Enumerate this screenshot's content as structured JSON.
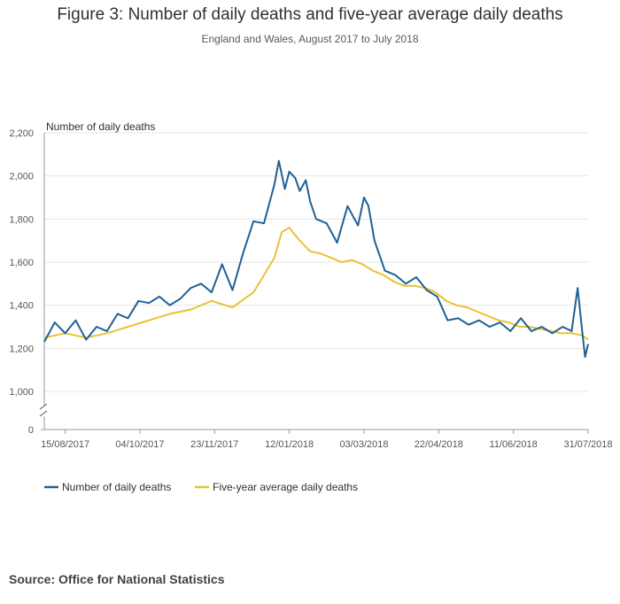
{
  "title": "Figure 3: Number of daily deaths and five-year average daily deaths",
  "subtitle": "England and Wales, August 2017 to July 2018",
  "source": "Source: Office for National Statistics",
  "colors": {
    "deaths": "#206095",
    "average": "#e8c234",
    "grid": "#e4e4e4",
    "axis": "#999999"
  },
  "chart_data": {
    "type": "line",
    "title": "Figure 3: Number of daily deaths and five-year average daily deaths",
    "subtitle": "England and Wales, August 2017 to July 2018",
    "ylabel": "Number of daily deaths",
    "xlabel": "",
    "ylim": [
      0,
      2200
    ],
    "y_break": [
      0,
      1000
    ],
    "yticks": [
      "0",
      "1,000",
      "1,200",
      "1,400",
      "1,600",
      "1,800",
      "2,000",
      "2,200"
    ],
    "ytick_values": [
      0,
      1000,
      1200,
      1400,
      1600,
      1800,
      2000,
      2200
    ],
    "xlim": [
      "01/08/2017",
      "31/07/2018"
    ],
    "xticks": [
      "15/08/2017",
      "04/10/2017",
      "23/11/2017",
      "12/01/2018",
      "03/03/2018",
      "22/04/2018",
      "11/06/2018",
      "31/07/2018"
    ],
    "grid": true,
    "legend_position": "bottom-left",
    "series": [
      {
        "name": "Number of daily deaths",
        "color": "#206095",
        "x": [
          "01/08/2017",
          "08/08/2017",
          "15/08/2017",
          "22/08/2017",
          "29/08/2017",
          "05/09/2017",
          "12/09/2017",
          "19/09/2017",
          "26/09/2017",
          "03/10/2017",
          "10/10/2017",
          "17/10/2017",
          "24/10/2017",
          "31/10/2017",
          "07/11/2017",
          "14/11/2017",
          "21/11/2017",
          "28/11/2017",
          "05/12/2017",
          "12/12/2017",
          "19/12/2017",
          "26/12/2017",
          "02/01/2018",
          "05/01/2018",
          "09/01/2018",
          "12/01/2018",
          "16/01/2018",
          "19/01/2018",
          "23/01/2018",
          "26/01/2018",
          "30/01/2018",
          "06/02/2018",
          "13/02/2018",
          "20/02/2018",
          "27/02/2018",
          "03/03/2018",
          "06/03/2018",
          "10/03/2018",
          "17/03/2018",
          "24/03/2018",
          "31/03/2018",
          "07/04/2018",
          "14/04/2018",
          "21/04/2018",
          "28/04/2018",
          "05/05/2018",
          "12/05/2018",
          "19/05/2018",
          "26/05/2018",
          "02/06/2018",
          "09/06/2018",
          "16/06/2018",
          "23/06/2018",
          "30/06/2018",
          "07/07/2018",
          "14/07/2018",
          "20/07/2018",
          "24/07/2018",
          "27/07/2018",
          "29/07/2018",
          "31/07/2018"
        ],
        "y": [
          1230,
          1320,
          1270,
          1330,
          1240,
          1300,
          1280,
          1360,
          1340,
          1420,
          1410,
          1440,
          1400,
          1430,
          1480,
          1500,
          1460,
          1590,
          1470,
          1640,
          1790,
          1780,
          1960,
          2070,
          1940,
          2020,
          1990,
          1930,
          1980,
          1880,
          1800,
          1780,
          1690,
          1860,
          1770,
          1900,
          1860,
          1700,
          1560,
          1540,
          1500,
          1530,
          1470,
          1440,
          1330,
          1340,
          1310,
          1330,
          1300,
          1320,
          1280,
          1340,
          1280,
          1300,
          1270,
          1300,
          1280,
          1480,
          1280,
          1160,
          1220
        ]
      },
      {
        "name": "Five-year average daily deaths",
        "color": "#e8c234",
        "x": [
          "01/08/2017",
          "15/08/2017",
          "29/08/2017",
          "12/09/2017",
          "26/09/2017",
          "10/10/2017",
          "24/10/2017",
          "07/11/2017",
          "21/11/2017",
          "05/12/2017",
          "19/12/2017",
          "26/12/2017",
          "02/01/2018",
          "07/01/2018",
          "12/01/2018",
          "19/01/2018",
          "26/01/2018",
          "02/02/2018",
          "09/02/2018",
          "16/02/2018",
          "23/02/2018",
          "02/03/2018",
          "09/03/2018",
          "16/03/2018",
          "23/03/2018",
          "30/03/2018",
          "06/04/2018",
          "13/04/2018",
          "20/04/2018",
          "27/04/2018",
          "04/05/2018",
          "11/05/2018",
          "18/05/2018",
          "25/05/2018",
          "01/06/2018",
          "08/06/2018",
          "15/06/2018",
          "22/06/2018",
          "29/06/2018",
          "06/07/2018",
          "13/07/2018",
          "20/07/2018",
          "27/07/2018",
          "31/07/2018"
        ],
        "y": [
          1250,
          1270,
          1250,
          1270,
          1300,
          1330,
          1360,
          1380,
          1420,
          1390,
          1460,
          1540,
          1620,
          1740,
          1760,
          1700,
          1650,
          1640,
          1620,
          1600,
          1610,
          1590,
          1560,
          1540,
          1510,
          1490,
          1490,
          1480,
          1460,
          1420,
          1400,
          1390,
          1370,
          1350,
          1330,
          1320,
          1300,
          1300,
          1290,
          1280,
          1270,
          1270,
          1260,
          1240
        ]
      }
    ]
  }
}
